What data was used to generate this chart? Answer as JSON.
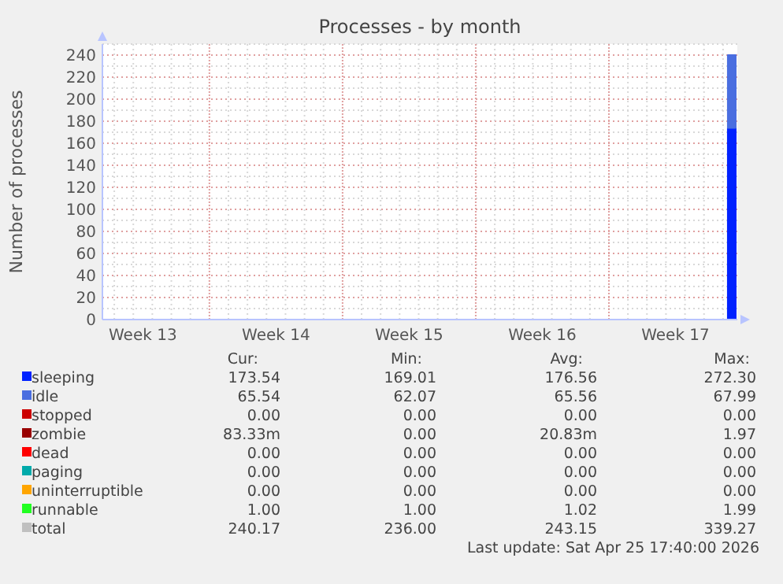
{
  "chart_data": {
    "type": "area",
    "title": "Processes - by month",
    "ylabel": "Number of processes",
    "stacked": true,
    "grid": true,
    "legend": "bottom",
    "xlim": [
      "2026-03-24T09:00",
      "2026-04-26T18:00"
    ],
    "xticks": [
      {
        "value": "2026-03-26T12:00",
        "label": "Week 13"
      },
      {
        "value": "2026-04-02T12:00",
        "label": "Week 14"
      },
      {
        "value": "2026-04-09T12:00",
        "label": "Week 15"
      },
      {
        "value": "2026-04-16T12:00",
        "label": "Week 16"
      },
      {
        "value": "2026-04-23T12:00",
        "label": "Week 17"
      }
    ],
    "ylim": [
      0,
      250
    ],
    "yticks": [
      0,
      20,
      40,
      60,
      80,
      100,
      120,
      140,
      160,
      180,
      200,
      220,
      240
    ],
    "x": [
      "2026-04-26T06:00",
      "2026-04-26T16:00"
    ],
    "series": [
      {
        "name": "sleeping",
        "color": "#0022ff",
        "values": [
          174,
          174
        ]
      },
      {
        "name": "idle",
        "color": "#4a6ee0",
        "values": [
          66,
          66
        ]
      },
      {
        "name": "stopped",
        "color": "#cc0000",
        "values": [
          null,
          null
        ]
      },
      {
        "name": "zombie",
        "color": "#990000",
        "values": [
          null,
          null
        ]
      },
      {
        "name": "dead",
        "color": "#ff0000",
        "values": [
          null,
          null
        ]
      },
      {
        "name": "paging",
        "color": "#00aaaa",
        "values": [
          null,
          null
        ]
      },
      {
        "name": "uninterruptible",
        "color": "#ffa500",
        "values": [
          null,
          null
        ]
      },
      {
        "name": "runnable",
        "color": "#22ff22",
        "values": [
          null,
          null
        ]
      },
      {
        "name": "total",
        "color": "#c0c0c0",
        "values": [
          null,
          null
        ]
      }
    ],
    "annotations": [
      "Cur:",
      "Min:",
      "Avg:",
      "Max:",
      "173.54",
      "169.01",
      "176.56",
      "272.30",
      "65.54",
      "62.07",
      "65.56",
      "67.99",
      "0.00",
      "0.00",
      "0.00",
      "0.00",
      "83.33m",
      "0.00",
      "20.83m",
      "1.97",
      "0.00",
      "0.00",
      "0.00",
      "0.00",
      "0.00",
      "0.00",
      "0.00",
      "0.00",
      "0.00",
      "0.00",
      "0.00",
      "0.00",
      "1.00",
      "1.00",
      "1.02",
      "1.99",
      "240.17",
      "236.00",
      "243.15",
      "339.27",
      "Last update: Sat Apr 25 17:40:00 2026"
    ]
  }
}
